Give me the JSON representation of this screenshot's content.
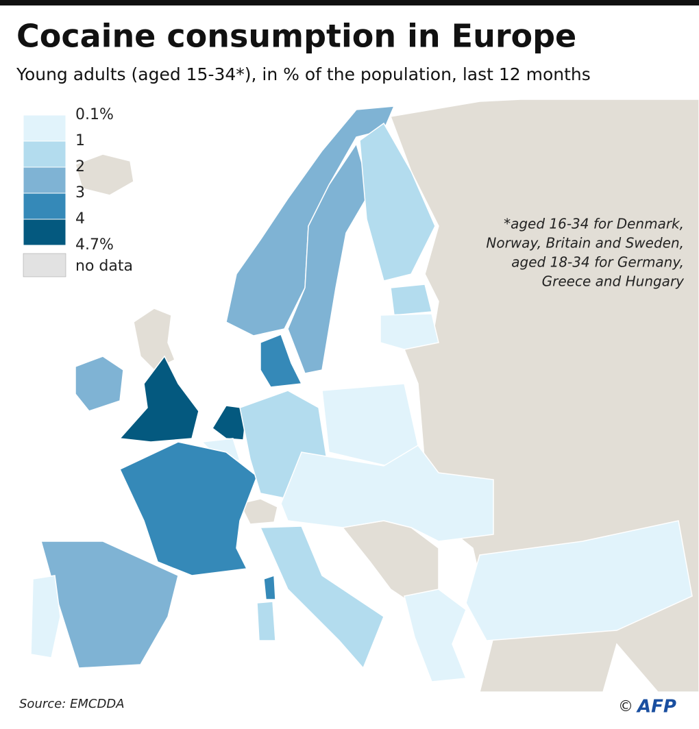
{
  "header": {
    "title": "Cocaine consumption in Europe",
    "subtitle": "Young adults (aged 15-34*), in % of the population, last 12 months"
  },
  "legend": {
    "breaks": [
      "0.1%",
      "1",
      "2",
      "3",
      "4",
      "4.7%"
    ],
    "colors": [
      "#e1f3fb",
      "#b3dcee",
      "#7fb3d4",
      "#3589b8",
      "#04597f"
    ],
    "no_data": {
      "label": "no data",
      "color": "#e2e2e2"
    }
  },
  "note": [
    "*aged 16-34 for Denmark,",
    "Norway, Britain and Sweden,",
    "aged 18-34 for Germany,",
    "Greece and Hungary"
  ],
  "source": "Source: EMCDDA",
  "credit": {
    "symbol": "©",
    "agency": "AFP"
  }
}
